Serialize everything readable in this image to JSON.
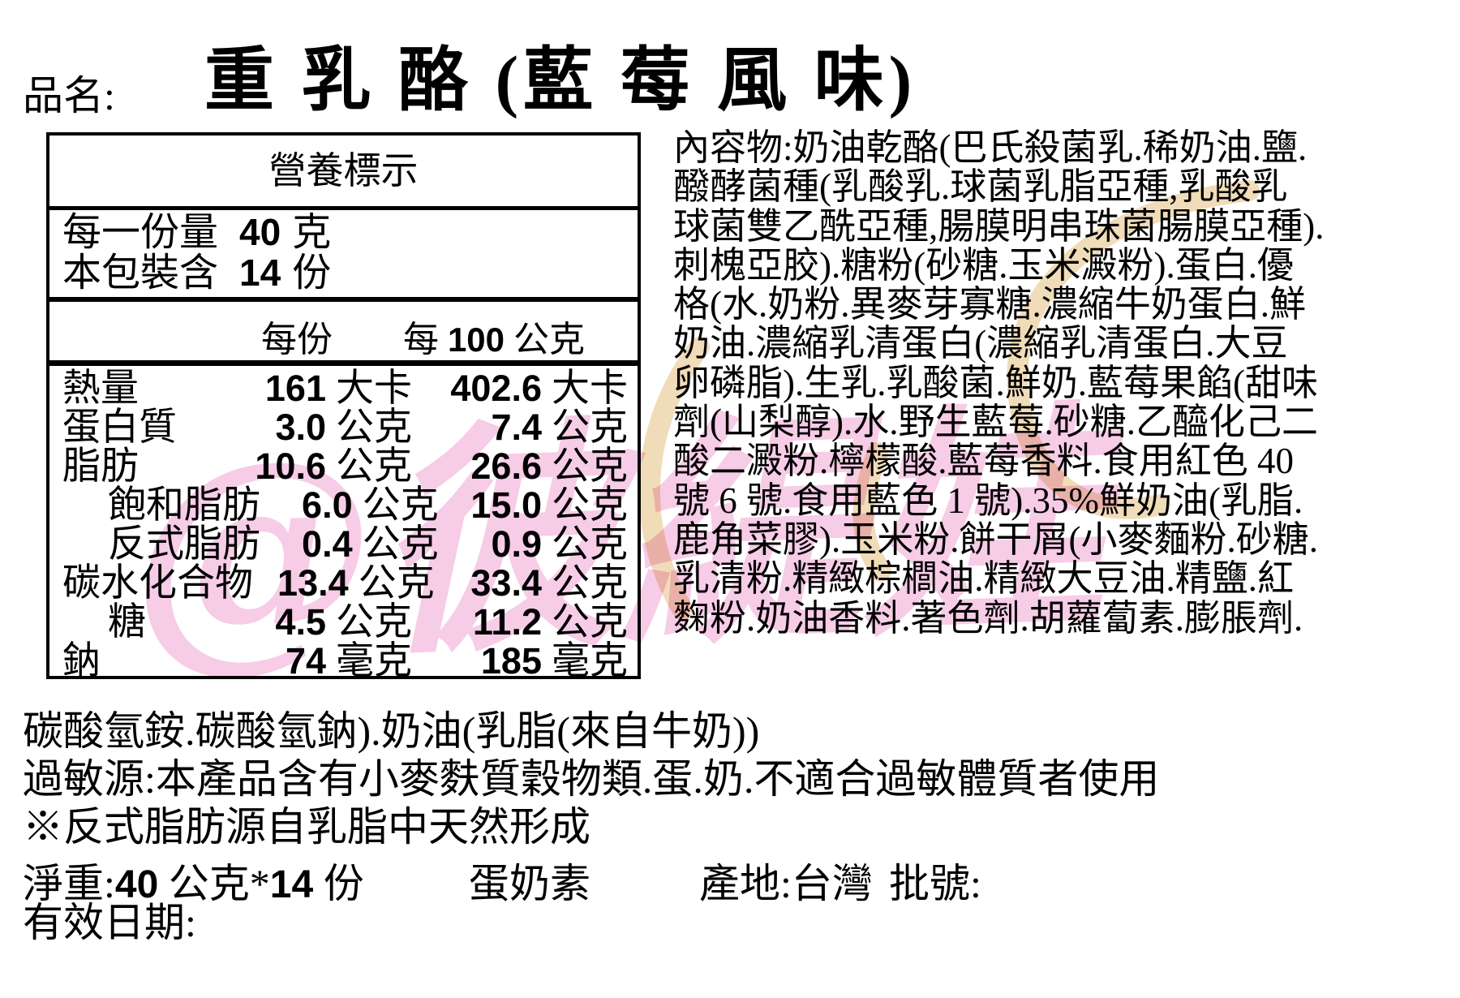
{
  "header": {
    "field_label": "品名:",
    "product_name": "重 乳 酪 (藍 莓 風 味)"
  },
  "nutrition_table": {
    "title": "營養標示",
    "serving_rows": [
      {
        "label": "每一份量",
        "value": "40",
        "unit": "克"
      },
      {
        "label": "本包裝含",
        "value": "14",
        "unit": "份"
      }
    ],
    "column_headers": {
      "per_serving": "每份",
      "per_100g_prefix": "每",
      "per_100g_num": "100",
      "per_100g_suffix": "公克"
    },
    "rows": [
      {
        "label": "熱量",
        "indent": false,
        "v1": "161",
        "u1": "大卡",
        "v2": "402.6",
        "u2": "大卡"
      },
      {
        "label": "蛋白質",
        "indent": false,
        "v1": "3.0",
        "u1": "公克",
        "v2": "7.4",
        "u2": "公克"
      },
      {
        "label": "脂肪",
        "indent": false,
        "v1": "10.6",
        "u1": "公克",
        "v2": "26.6",
        "u2": "公克"
      },
      {
        "label": "飽和脂肪",
        "indent": true,
        "v1": "6.0",
        "u1": "公克",
        "v2": "15.0",
        "u2": "公克"
      },
      {
        "label": "反式脂肪",
        "indent": true,
        "v1": "0.4",
        "u1": "公克",
        "v2": "0.9",
        "u2": "公克"
      },
      {
        "label": "碳水化合物",
        "indent": false,
        "v1": "13.4",
        "u1": "公克",
        "v2": "33.4",
        "u2": "公克"
      },
      {
        "label": "糖",
        "indent": true,
        "v1": "4.5",
        "u1": "公克",
        "v2": "11.2",
        "u2": "公克"
      },
      {
        "label": "鈉",
        "indent": false,
        "v1": "74",
        "u1": "毫克",
        "v2": "185",
        "u2": "毫克"
      }
    ]
  },
  "ingredients_lines": [
    "內容物:奶油乾酪(巴氏殺菌乳.稀奶油.鹽.",
    "醱酵菌種(乳酸乳.球菌乳脂亞種,乳酸乳",
    "球菌雙乙酰亞種,腸膜明串珠菌腸膜亞種).",
    "刺槐亞胶).糖粉(砂糖.玉米澱粉).蛋白.優",
    "格(水.奶粉.異麥芽寡糖.濃縮牛奶蛋白.鮮",
    "奶油.濃縮乳清蛋白(濃縮乳清蛋白.大豆",
    "卵磷脂).生乳.乳酸菌.鮮奶.藍莓果餡(甜味",
    "劑(山梨醇).水.野生藍莓.砂糖.乙醯化己二",
    "酸二澱粉.檸檬酸.藍莓香料.食用紅色 40",
    "號 6 號.食用藍色 1 號).35%鮮奶油(乳脂.",
    "鹿角菜膠).玉米粉.餅干屑(小麥麵粉.砂糖.",
    "乳清粉.精緻棕櫚油.精緻大豆油.精鹽.紅",
    "麴粉.奶油香料.著色劑.胡蘿蔔素.膨脹劑."
  ],
  "footer": {
    "continuation": "碳酸氫銨.碳酸氫鈉).奶油(乳脂(來自牛奶))",
    "allergen": "過敏源:本產品含有小麥麩質穀物類.蛋.奶.不適合過敏體質者使用",
    "trans_fat_note": "※反式脂肪源自乳脂中天然形成",
    "net_weight_label": "淨重:",
    "net_weight_value": "40",
    "net_weight_mid": "公克*",
    "net_weight_servings": "14",
    "net_weight_unit": "份",
    "diet_type": "蛋奶素",
    "origin": "產地:台灣",
    "batch_label": "批號:",
    "expiry_label": "有效日期:"
  },
  "watermark": {
    "text": "@彼緹娃",
    "pink_color": "#ee8ec9",
    "tan_color": "#eed3a8"
  }
}
